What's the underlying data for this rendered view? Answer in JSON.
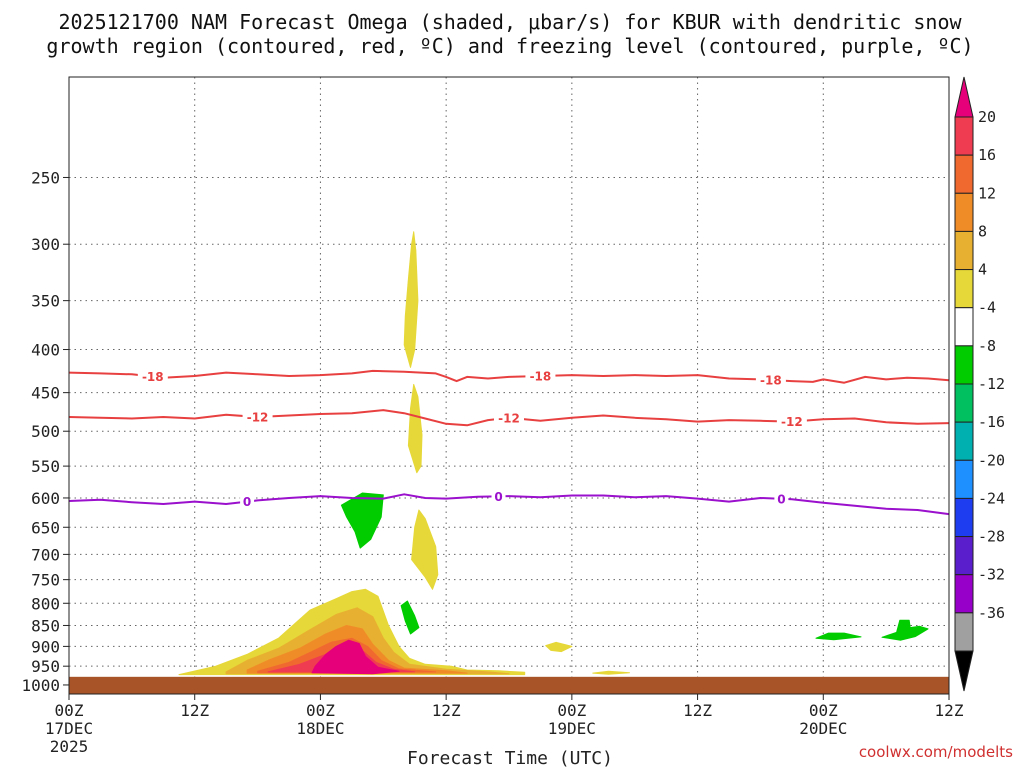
{
  "chart_data": {
    "type": "time-height",
    "title_line1": "2025121700 NAM Forecast Omega (shaded, μbar/s) for KBUR with dendritic snow",
    "title_line2": "growth region (contoured, red, ºC) and freezing level (contoured, purple, ºC)",
    "xlabel": "Forecast Time (UTC)",
    "credit": "coolwx.com/modelts",
    "x_range_hours": [
      0,
      84
    ],
    "x_ticks": [
      {
        "h": 0,
        "lines": [
          "00Z",
          "17DEC",
          "2025"
        ]
      },
      {
        "h": 12,
        "lines": [
          "12Z"
        ]
      },
      {
        "h": 24,
        "lines": [
          "00Z",
          "18DEC"
        ]
      },
      {
        "h": 36,
        "lines": [
          "12Z"
        ]
      },
      {
        "h": 48,
        "lines": [
          "00Z",
          "19DEC"
        ]
      },
      {
        "h": 60,
        "lines": [
          "12Z"
        ]
      },
      {
        "h": 72,
        "lines": [
          "00Z",
          "20DEC"
        ]
      },
      {
        "h": 84,
        "lines": [
          "12Z"
        ]
      }
    ],
    "pressure_range": [
      1025,
      190
    ],
    "pressure_ticks": [
      250,
      300,
      350,
      400,
      450,
      500,
      550,
      600,
      650,
      700,
      750,
      800,
      850,
      900,
      950,
      1000
    ],
    "surface_pressure": 978,
    "colorbar": {
      "labels": [
        "20",
        "16",
        "12",
        "8",
        "4",
        "-4",
        "-8",
        "-12",
        "-16",
        "-20",
        "-24",
        "-28",
        "-32",
        "-36"
      ],
      "colors": [
        "#f03c50",
        "#f06a30",
        "#f08c28",
        "#e8b030",
        "#e6d838",
        "#ffffff",
        "#00cc00",
        "#00c060",
        "#00b0b0",
        "#1e90ff",
        "#1e3cf0",
        "#5a1ecc",
        "#9600c8",
        "#a0a0a0"
      ],
      "top_arrow": "#e6007a",
      "bottom_arrow": "#000000"
    },
    "contours": [
      {
        "name": "-18",
        "color": "#e84040",
        "label": "-18",
        "label_hours": [
          8,
          45,
          67
        ],
        "points": [
          [
            0,
            426
          ],
          [
            3,
            427
          ],
          [
            6,
            428
          ],
          [
            9,
            432
          ],
          [
            12,
            430
          ],
          [
            15,
            426
          ],
          [
            18,
            428
          ],
          [
            21,
            430
          ],
          [
            24,
            429
          ],
          [
            27,
            427
          ],
          [
            29,
            424
          ],
          [
            32,
            425
          ],
          [
            35,
            427
          ],
          [
            36,
            431
          ],
          [
            37,
            436
          ],
          [
            38,
            431
          ],
          [
            40,
            433
          ],
          [
            42,
            431
          ],
          [
            45,
            430
          ],
          [
            48,
            429
          ],
          [
            51,
            430
          ],
          [
            54,
            429
          ],
          [
            57,
            430
          ],
          [
            60,
            429
          ],
          [
            63,
            433
          ],
          [
            66,
            434
          ],
          [
            69,
            436
          ],
          [
            71,
            437
          ],
          [
            72,
            434
          ],
          [
            74,
            438
          ],
          [
            76,
            431
          ],
          [
            78,
            434
          ],
          [
            80,
            432
          ],
          [
            82,
            433
          ],
          [
            84,
            435
          ]
        ]
      },
      {
        "name": "-12",
        "color": "#e84040",
        "label": "-12",
        "label_hours": [
          18,
          42,
          69
        ],
        "points": [
          [
            0,
            481
          ],
          [
            3,
            482
          ],
          [
            6,
            483
          ],
          [
            9,
            481
          ],
          [
            12,
            483
          ],
          [
            15,
            478
          ],
          [
            18,
            481
          ],
          [
            21,
            479
          ],
          [
            24,
            477
          ],
          [
            27,
            476
          ],
          [
            30,
            472
          ],
          [
            32,
            476
          ],
          [
            34,
            483
          ],
          [
            36,
            490
          ],
          [
            38,
            492
          ],
          [
            40,
            485
          ],
          [
            42,
            482
          ],
          [
            45,
            486
          ],
          [
            48,
            482
          ],
          [
            51,
            479
          ],
          [
            54,
            482
          ],
          [
            57,
            484
          ],
          [
            60,
            487
          ],
          [
            63,
            485
          ],
          [
            66,
            486
          ],
          [
            69,
            487
          ],
          [
            72,
            484
          ],
          [
            75,
            483
          ],
          [
            78,
            488
          ],
          [
            81,
            490
          ],
          [
            84,
            489
          ]
        ]
      },
      {
        "name": "0",
        "color": "#9a10cc",
        "label": "0",
        "label_hours": [
          17,
          41,
          68
        ],
        "points": [
          [
            0,
            605
          ],
          [
            3,
            603
          ],
          [
            6,
            607
          ],
          [
            9,
            610
          ],
          [
            12,
            606
          ],
          [
            15,
            610
          ],
          [
            18,
            604
          ],
          [
            21,
            600
          ],
          [
            24,
            597
          ],
          [
            27,
            600
          ],
          [
            30,
            601
          ],
          [
            32,
            594
          ],
          [
            34,
            600
          ],
          [
            36,
            601
          ],
          [
            39,
            598
          ],
          [
            42,
            597
          ],
          [
            45,
            599
          ],
          [
            48,
            596
          ],
          [
            51,
            596
          ],
          [
            54,
            599
          ],
          [
            57,
            597
          ],
          [
            60,
            601
          ],
          [
            63,
            606
          ],
          [
            66,
            600
          ],
          [
            69,
            602
          ],
          [
            72,
            608
          ],
          [
            75,
            613
          ],
          [
            78,
            618
          ],
          [
            81,
            620
          ],
          [
            84,
            627
          ]
        ]
      }
    ],
    "omega_regions": [
      {
        "name": "ascent-main-8",
        "color": "#e6d838",
        "points": [
          [
            10.5,
            972
          ],
          [
            14,
            950
          ],
          [
            17,
            920
          ],
          [
            20,
            880
          ],
          [
            23,
            815
          ],
          [
            25.5,
            790
          ],
          [
            27,
            775
          ],
          [
            28.3,
            770
          ],
          [
            29.5,
            785
          ],
          [
            30.5,
            850
          ],
          [
            31.5,
            900
          ],
          [
            32.5,
            930
          ],
          [
            34,
            945
          ],
          [
            36.5,
            950
          ],
          [
            38,
            960
          ],
          [
            41,
            962
          ],
          [
            43.5,
            966
          ],
          [
            43.5,
            972
          ]
        ]
      },
      {
        "name": "ascent-main-4",
        "color": "#e8b030",
        "points": [
          [
            15,
            965
          ],
          [
            17,
            935
          ],
          [
            20,
            905
          ],
          [
            23,
            860
          ],
          [
            25.5,
            825
          ],
          [
            27.5,
            810
          ],
          [
            29,
            830
          ],
          [
            30,
            880
          ],
          [
            31,
            915
          ],
          [
            32.5,
            945
          ],
          [
            36,
            958
          ],
          [
            40,
            965
          ],
          [
            42,
            970
          ],
          [
            15,
            970
          ]
        ]
      },
      {
        "name": "ascent-main-12",
        "color": "#f08c28",
        "points": [
          [
            17,
            960
          ],
          [
            19,
            935
          ],
          [
            22,
            905
          ],
          [
            24.5,
            870
          ],
          [
            26.5,
            850
          ],
          [
            28,
            858
          ],
          [
            29,
            895
          ],
          [
            30.5,
            935
          ],
          [
            32,
            955
          ],
          [
            36,
            962
          ],
          [
            38,
            968
          ],
          [
            17,
            968
          ]
        ]
      },
      {
        "name": "ascent-main-16",
        "color": "#f06a30",
        "points": [
          [
            18,
            963
          ],
          [
            21,
            940
          ],
          [
            23,
            915
          ],
          [
            25,
            890
          ],
          [
            27,
            880
          ],
          [
            28.5,
            900
          ],
          [
            29.8,
            935
          ],
          [
            31.5,
            957
          ],
          [
            35,
            965
          ],
          [
            18,
            967
          ]
        ]
      },
      {
        "name": "ascent-main-20",
        "color": "#f03c50",
        "points": [
          [
            19,
            965
          ],
          [
            22,
            945
          ],
          [
            24,
            925
          ],
          [
            26,
            905
          ],
          [
            28,
            910
          ],
          [
            29.3,
            940
          ],
          [
            31,
            958
          ],
          [
            33,
            965
          ]
        ]
      },
      {
        "name": "ascent-core",
        "color": "#e6007a",
        "points": [
          [
            23.2,
            967
          ],
          [
            23.5,
            950
          ],
          [
            24.5,
            920
          ],
          [
            25.5,
            900
          ],
          [
            26.7,
            885
          ],
          [
            27.7,
            893
          ],
          [
            28.3,
            925
          ],
          [
            29.5,
            953
          ],
          [
            31.5,
            963
          ],
          [
            29,
            970
          ]
        ]
      },
      {
        "name": "ascent-upper-300",
        "color": "#e6d838",
        "points": [
          [
            32,
            395
          ],
          [
            32.1,
            365
          ],
          [
            32.4,
            330
          ],
          [
            32.7,
            300
          ],
          [
            32.9,
            290
          ],
          [
            33.1,
            305
          ],
          [
            33.3,
            350
          ],
          [
            33.0,
            400
          ],
          [
            32.6,
            420
          ]
        ]
      },
      {
        "name": "ascent-upper-480",
        "color": "#e6d838",
        "points": [
          [
            32.4,
            520
          ],
          [
            32.6,
            470
          ],
          [
            32.9,
            440
          ],
          [
            33.3,
            455
          ],
          [
            33.7,
            505
          ],
          [
            33.6,
            550
          ],
          [
            33.2,
            560
          ]
        ]
      },
      {
        "name": "ascent-mid-700",
        "color": "#e6d838",
        "points": [
          [
            32.7,
            710
          ],
          [
            33.0,
            650
          ],
          [
            33.4,
            620
          ],
          [
            34.0,
            635
          ],
          [
            35.0,
            685
          ],
          [
            35.2,
            740
          ],
          [
            34.7,
            770
          ],
          [
            34.0,
            745
          ]
        ]
      },
      {
        "name": "ascent-low-900",
        "color": "#e6d838",
        "points": [
          [
            45.5,
            898
          ],
          [
            46.5,
            890
          ],
          [
            48,
            900
          ],
          [
            47,
            913
          ],
          [
            46,
            910
          ]
        ]
      },
      {
        "name": "ascent-low-965",
        "color": "#e6d838",
        "points": [
          [
            50,
            968
          ],
          [
            51.5,
            963
          ],
          [
            53.5,
            967
          ],
          [
            51.5,
            971
          ]
        ]
      },
      {
        "name": "descent-mid-630",
        "color": "#00cc00",
        "points": [
          [
            26,
            612
          ],
          [
            28,
            592
          ],
          [
            30,
            595
          ],
          [
            29.8,
            632
          ],
          [
            28.8,
            672
          ],
          [
            27.8,
            688
          ],
          [
            27.3,
            658
          ],
          [
            26.5,
            632
          ]
        ]
      },
      {
        "name": "descent-low-820",
        "color": "#00cc00",
        "points": [
          [
            31.7,
            805
          ],
          [
            32.3,
            795
          ],
          [
            33.0,
            828
          ],
          [
            33.4,
            855
          ],
          [
            32.6,
            870
          ],
          [
            32.1,
            840
          ]
        ]
      },
      {
        "name": "descent-low-880",
        "color": "#00cc00",
        "points": [
          [
            71.3,
            880
          ],
          [
            72.5,
            868
          ],
          [
            74,
            868
          ],
          [
            75.6,
            877
          ],
          [
            73,
            884
          ]
        ]
      },
      {
        "name": "descent-low-860",
        "color": "#00cc00",
        "points": [
          [
            77.6,
            878
          ],
          [
            79,
            866
          ],
          [
            79.3,
            838
          ],
          [
            80.2,
            838
          ],
          [
            80.3,
            855
          ],
          [
            81.2,
            852
          ],
          [
            82.0,
            858
          ],
          [
            80.8,
            876
          ],
          [
            79.4,
            885
          ]
        ]
      }
    ]
  }
}
